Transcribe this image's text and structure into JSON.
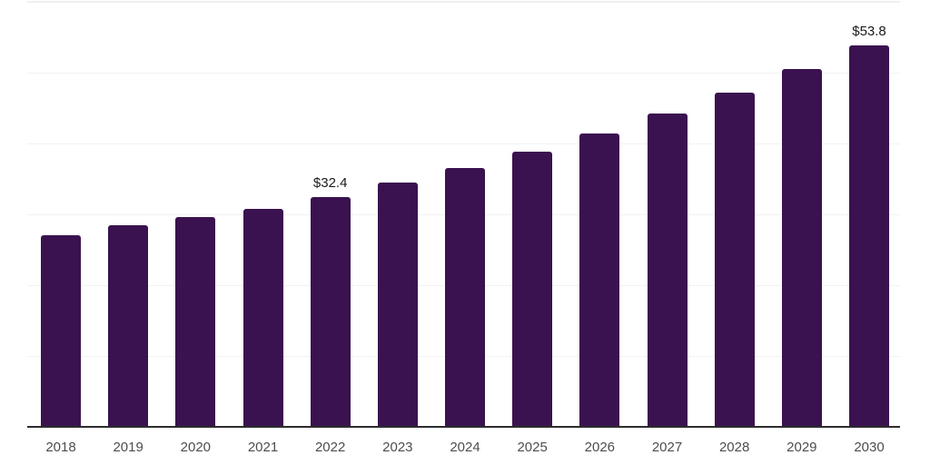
{
  "chart_data": {
    "type": "bar",
    "title": "",
    "xlabel": "",
    "ylabel": "",
    "categories": [
      "2018",
      "2019",
      "2020",
      "2021",
      "2022",
      "2023",
      "2024",
      "2025",
      "2026",
      "2027",
      "2028",
      "2029",
      "2030"
    ],
    "values": [
      27.1,
      28.5,
      29.6,
      30.8,
      32.4,
      34.5,
      36.5,
      38.8,
      41.4,
      44.2,
      47.2,
      50.5,
      53.8
    ],
    "value_labels": [
      "",
      "",
      "",
      "",
      "$32.4",
      "",
      "",
      "",
      "",
      "",
      "",
      "",
      "$53.8"
    ],
    "ylim": [
      0,
      60
    ],
    "gridline_step": 10,
    "grid": "horizontal-only, no y-axis tick labels",
    "legend": "none",
    "colors": {
      "bar": "#3a124f",
      "axis_line": "#2d2d2d",
      "gridline": "#f2f2f2",
      "top_boundary_line": "#eef0f0",
      "x_tick_label": "#4d4d4d",
      "data_label": "#1a1a1a",
      "background": "#ffffff"
    }
  }
}
